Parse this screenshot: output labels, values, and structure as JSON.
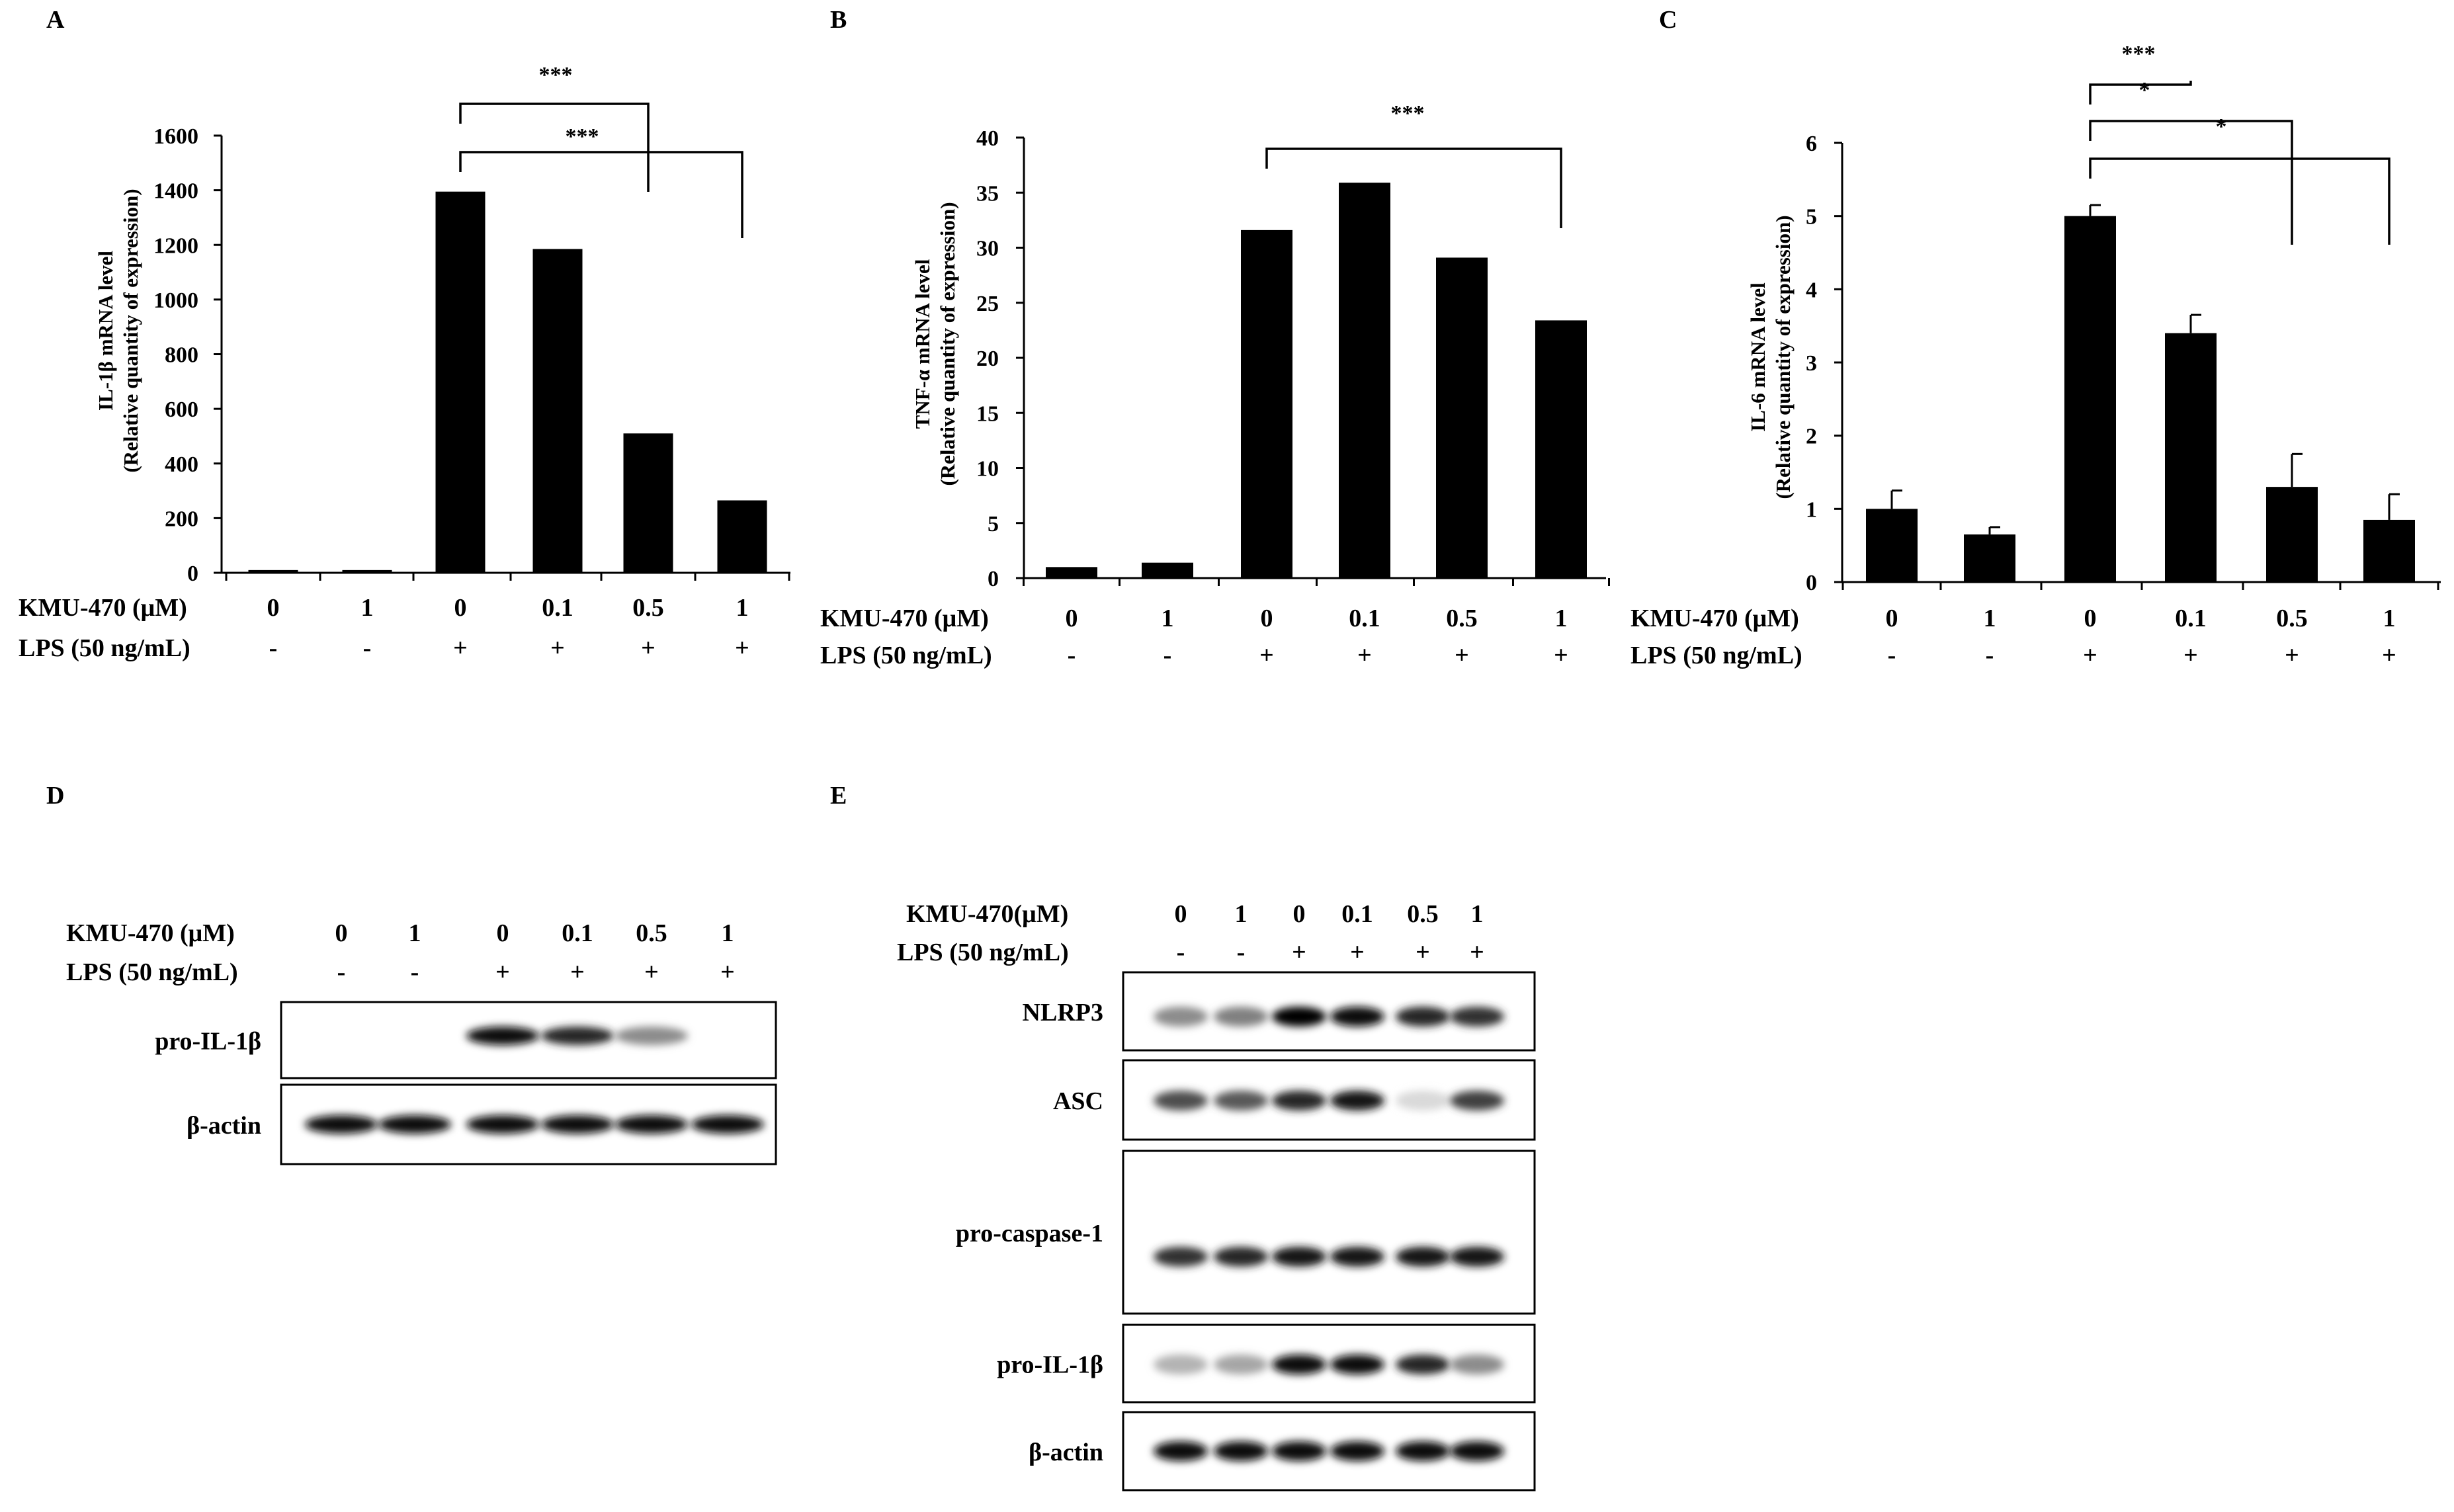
{
  "panel_letters": [
    "A",
    "B",
    "C",
    "D",
    "E"
  ],
  "row_labels": {
    "kmu": "KMU-470 (μM)",
    "kmu_e": "KMU-470(μM)",
    "lps": "LPS (50 ng/mL)"
  },
  "chart_data": [
    {
      "type": "bar",
      "panel": "A",
      "categories": [
        "0",
        "1",
        "0",
        "0.1",
        "0.5",
        "1"
      ],
      "lps": [
        "-",
        "-",
        "+",
        "+",
        "+",
        "+"
      ],
      "values": [
        10,
        10,
        1395,
        1185,
        510,
        265
      ],
      "errors": [
        0,
        0,
        0,
        0,
        0,
        0
      ],
      "ylabel": "IL-1β  mRNA level",
      "ylabel2": "(Relative quantity  of expression)",
      "ylim": [
        0,
        1600
      ],
      "yticks": [
        0,
        200,
        400,
        600,
        800,
        1000,
        1200,
        1400,
        1600
      ],
      "significance": [
        {
          "from": 2,
          "to": 4,
          "label": "***"
        },
        {
          "from": 2,
          "to": 5,
          "label": "***"
        }
      ]
    },
    {
      "type": "bar",
      "panel": "B",
      "categories": [
        "0",
        "1",
        "0",
        "0.1",
        "0.5",
        "1"
      ],
      "lps": [
        "-",
        "-",
        "+",
        "+",
        "+",
        "+"
      ],
      "values": [
        1.0,
        1.4,
        31.6,
        35.9,
        29.1,
        23.4
      ],
      "errors": [
        0,
        0,
        0,
        0,
        0,
        0
      ],
      "ylabel": "TNF-α mRNA level",
      "ylabel2": "(Relative quantity  of expression)",
      "ylim": [
        0,
        40
      ],
      "yticks": [
        0,
        5,
        10,
        15,
        20,
        25,
        30,
        35,
        40
      ],
      "significance": [
        {
          "from": 2,
          "to": 5,
          "label": "***"
        }
      ]
    },
    {
      "type": "bar",
      "panel": "C",
      "categories": [
        "0",
        "1",
        "0",
        "0.1",
        "0.5",
        "1"
      ],
      "lps": [
        "-",
        "-",
        "+",
        "+",
        "+",
        "+"
      ],
      "values": [
        1.0,
        0.65,
        5.0,
        3.4,
        1.3,
        0.85
      ],
      "errors": [
        0.25,
        0.1,
        0.15,
        0.25,
        0.45,
        0.35
      ],
      "ylabel": "IL-6 mRNA level",
      "ylabel2": "(Relative quantity  of expression)",
      "ylim": [
        0,
        6
      ],
      "yticks": [
        0,
        1,
        2,
        3,
        4,
        5,
        6
      ],
      "significance": [
        {
          "from": 2,
          "to": 3,
          "label": "***"
        },
        {
          "from": 2,
          "to": 4,
          "label": "*"
        },
        {
          "from": 2,
          "to": 5,
          "label": "*"
        }
      ]
    }
  ],
  "blot_d": {
    "kmu": [
      "0",
      "1",
      "0",
      "0.1",
      "0.5",
      "1"
    ],
    "lps": [
      "-",
      "-",
      "+",
      "+",
      "+",
      "+"
    ],
    "rows": [
      {
        "label": "pro-IL-1β",
        "intensity": [
          0,
          0,
          0.95,
          0.85,
          0.45,
          0.0
        ]
      },
      {
        "label": "β-actin",
        "intensity": [
          0.95,
          0.95,
          0.95,
          0.95,
          0.95,
          0.95
        ]
      }
    ]
  },
  "blot_e": {
    "kmu": [
      "0",
      "1",
      "0",
      "0.1",
      "0.5",
      "1"
    ],
    "lps": [
      "-",
      "-",
      "+",
      "+",
      "+",
      "+"
    ],
    "rows": [
      {
        "label": "NLRP3",
        "intensity": [
          0.45,
          0.5,
          0.98,
          0.95,
          0.85,
          0.8
        ]
      },
      {
        "label": "ASC",
        "intensity": [
          0.7,
          0.65,
          0.85,
          0.9,
          0.15,
          0.75
        ]
      },
      {
        "label": "pro-caspase-1",
        "intensity": [
          0.8,
          0.85,
          0.9,
          0.9,
          0.9,
          0.9
        ]
      },
      {
        "label": "pro-IL-1β",
        "intensity": [
          0.3,
          0.35,
          0.95,
          0.95,
          0.85,
          0.45
        ]
      },
      {
        "label": "β-actin",
        "intensity": [
          0.95,
          0.95,
          0.95,
          0.95,
          0.95,
          0.95
        ]
      }
    ]
  }
}
